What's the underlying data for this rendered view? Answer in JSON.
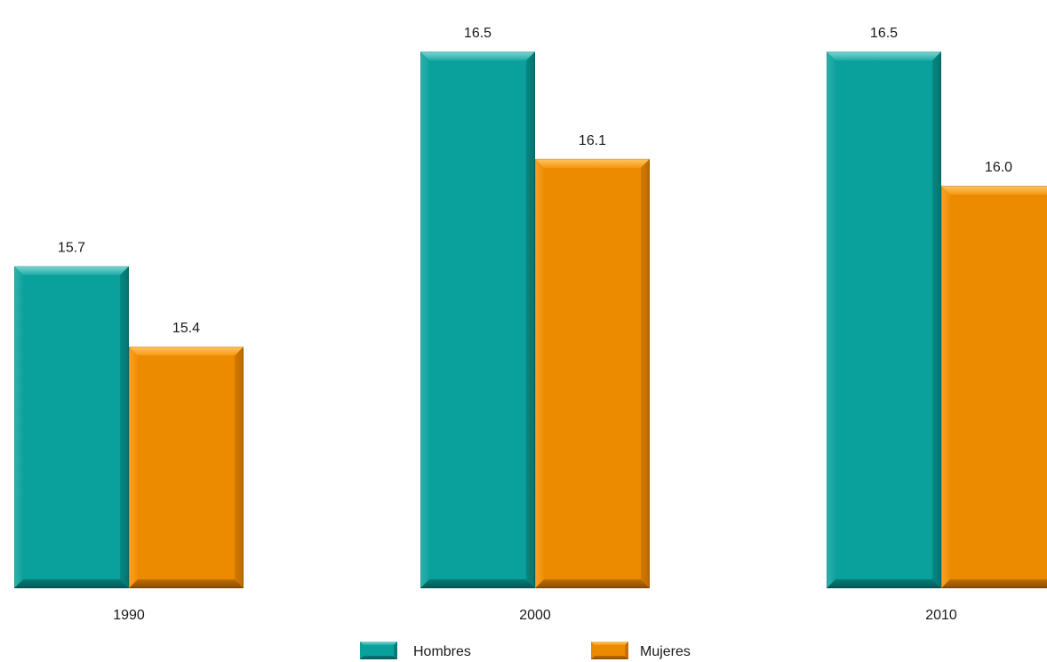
{
  "chart_data": {
    "type": "bar",
    "categories": [
      "1990",
      "2000",
      "2010"
    ],
    "series": [
      {
        "name": "Hombres",
        "values": [
          15.7,
          16.5,
          16.5
        ],
        "color": "#0aa19c"
      },
      {
        "name": "Mujeres",
        "values": [
          15.4,
          16.1,
          16.0
        ],
        "color": "#ec8a00"
      }
    ],
    "value_labels": [
      [
        "15.7",
        "16.5",
        "16.5"
      ],
      [
        "15.4",
        "16.1",
        "16.0"
      ]
    ],
    "title": "",
    "xlabel": "",
    "ylabel": "",
    "ylim": [
      14.5,
      16.55
    ],
    "grid": false,
    "legend": "bottom-center"
  }
}
